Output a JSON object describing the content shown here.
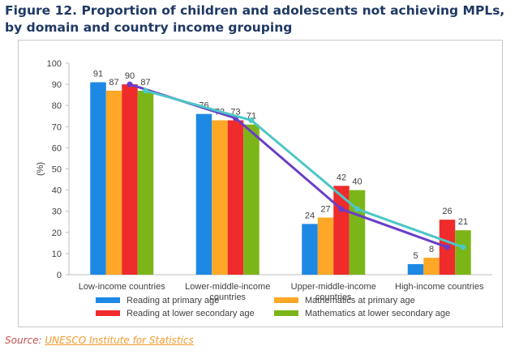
{
  "figure": {
    "title": "Figure 12. Proportion of children and adolescents not achieving MPLs, by domain and country income grouping"
  },
  "source": {
    "label": "Source:",
    "link_text": "UNESCO Institute for Statistics"
  },
  "chart_data": {
    "type": "bar",
    "ylabel": "(%)",
    "xlabel": "",
    "ylim": [
      0,
      100
    ],
    "yticks": [
      0,
      10,
      20,
      30,
      40,
      50,
      60,
      70,
      80,
      90,
      100
    ],
    "grid": false,
    "legend_position": "bottom",
    "categories": [
      "Low-income countries",
      "Lower-middle-income countries",
      "Upper-middle-income countries",
      "High-income countries"
    ],
    "series": [
      {
        "name": "Reading at primary age",
        "color": "#1e88e5",
        "values": [
          91,
          76,
          24,
          5
        ]
      },
      {
        "name": "Mathematics at primary age",
        "color": "#ffa726",
        "values": [
          87,
          73,
          27,
          8
        ]
      },
      {
        "name": "Reading at lower secondary age",
        "color": "#ef2b2b",
        "values": [
          90,
          73,
          42,
          26
        ]
      },
      {
        "name": "Mathematics at lower secondary age",
        "color": "#7cb518",
        "values": [
          87,
          71,
          40,
          21
        ]
      }
    ],
    "trend_lines": [
      {
        "series_index": 2,
        "color": "#6a3dc8",
        "values": [
          90,
          74,
          31,
          13
        ]
      },
      {
        "series_index": 3,
        "color": "#4dc6c6",
        "values": [
          87,
          73,
          31,
          13
        ]
      }
    ]
  }
}
